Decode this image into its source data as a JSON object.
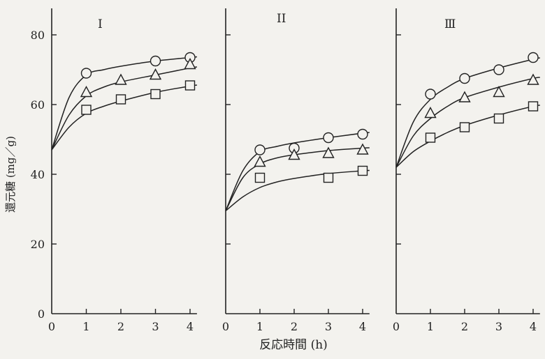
{
  "figure": {
    "ylabel": "還元糖 (mg／g)",
    "xlabel": "反応時間 (h)"
  },
  "chart_data": [
    {
      "type": "scatter",
      "title": "I",
      "xlim": [
        0,
        4.2
      ],
      "ylim": [
        0,
        84
      ],
      "xticks": [
        0,
        1,
        2,
        3,
        4
      ],
      "yticks": [
        0,
        20,
        40,
        60,
        80
      ],
      "markers": [
        "circle",
        "triangle",
        "square"
      ],
      "series": [
        {
          "marker": "circle",
          "x": [
            1,
            3,
            4
          ],
          "values": [
            69,
            72.5,
            73.5
          ]
        },
        {
          "marker": "triangle",
          "x": [
            1,
            2,
            3,
            4
          ],
          "values": [
            63.5,
            67,
            68.5,
            71.5
          ]
        },
        {
          "marker": "square",
          "x": [
            1,
            2,
            3,
            4
          ],
          "values": [
            58.5,
            61.5,
            63,
            65.5
          ]
        }
      ],
      "fit_curves": [
        {
          "marker": "circle",
          "x": [
            0,
            0.5,
            1,
            1.5,
            2,
            3,
            4,
            4.2
          ],
          "values": [
            47,
            62,
            68.5,
            70,
            71,
            72.5,
            73.5,
            73.7
          ]
        },
        {
          "marker": "triangle",
          "x": [
            0,
            0.5,
            1,
            1.5,
            2,
            3,
            4,
            4.2
          ],
          "values": [
            47,
            57,
            62.5,
            65,
            66.5,
            68.5,
            70.5,
            70.8
          ]
        },
        {
          "marker": "square",
          "x": [
            0,
            0.5,
            1,
            1.5,
            2,
            3,
            4,
            4.2
          ],
          "values": [
            47,
            53.5,
            57.5,
            59.5,
            61,
            63.5,
            65.3,
            65.6
          ]
        }
      ]
    },
    {
      "type": "scatter",
      "title": "II",
      "xlim": [
        0,
        4.2
      ],
      "ylim": [
        0,
        84
      ],
      "xticks": [
        0,
        1,
        2,
        3,
        4
      ],
      "yticks": [],
      "markers": [
        "circle",
        "triangle",
        "square"
      ],
      "series": [
        {
          "marker": "circle",
          "x": [
            1,
            2,
            3,
            4
          ],
          "values": [
            47,
            47.5,
            50.5,
            51.5
          ]
        },
        {
          "marker": "triangle",
          "x": [
            1,
            2,
            3,
            4
          ],
          "values": [
            43.5,
            45.5,
            46,
            47
          ]
        },
        {
          "marker": "square",
          "x": [
            1,
            3,
            4
          ],
          "values": [
            39,
            39,
            41
          ]
        }
      ],
      "fit_curves": [
        {
          "marker": "circle",
          "x": [
            0,
            0.5,
            1,
            1.5,
            2,
            3,
            4,
            4.2
          ],
          "values": [
            29.5,
            41,
            46.5,
            48,
            49,
            50.5,
            51.8,
            52
          ]
        },
        {
          "marker": "triangle",
          "x": [
            0,
            0.5,
            1,
            1.5,
            2,
            3,
            4,
            4.2
          ],
          "values": [
            29.5,
            39,
            43,
            44.7,
            45.6,
            46.8,
            47.5,
            47.6
          ]
        },
        {
          "marker": "square",
          "x": [
            0,
            0.5,
            1,
            1.5,
            2,
            3,
            4,
            4.2
          ],
          "values": [
            29.5,
            33.5,
            36.2,
            37.8,
            38.8,
            40.2,
            41,
            41.1
          ]
        }
      ]
    },
    {
      "type": "scatter",
      "title": "Ⅲ",
      "xlim": [
        0,
        4.2
      ],
      "ylim": [
        0,
        84
      ],
      "xticks": [
        0,
        1,
        2,
        3,
        4
      ],
      "yticks": [],
      "markers": [
        "circle",
        "triangle",
        "square"
      ],
      "series": [
        {
          "marker": "circle",
          "x": [
            1,
            2,
            3,
            4
          ],
          "values": [
            63,
            67.5,
            70,
            73.5
          ]
        },
        {
          "marker": "triangle",
          "x": [
            1,
            2,
            3,
            4
          ],
          "values": [
            57.5,
            62,
            63.5,
            67
          ]
        },
        {
          "marker": "square",
          "x": [
            1,
            2,
            3,
            4
          ],
          "values": [
            50.5,
            53.5,
            56,
            59.5
          ]
        }
      ],
      "fit_curves": [
        {
          "marker": "circle",
          "x": [
            0,
            0.5,
            1,
            1.5,
            2,
            3,
            4,
            4.2
          ],
          "values": [
            42,
            55,
            61.5,
            65,
            67.5,
            70.5,
            73,
            73.4
          ]
        },
        {
          "marker": "triangle",
          "x": [
            0,
            0.5,
            1,
            1.5,
            2,
            3,
            4,
            4.2
          ],
          "values": [
            42,
            51,
            56,
            59.5,
            62,
            65,
            67.5,
            67.8
          ]
        },
        {
          "marker": "square",
          "x": [
            0,
            0.5,
            1,
            1.5,
            2,
            3,
            4,
            4.2
          ],
          "values": [
            42,
            46.5,
            49.5,
            52,
            54,
            57,
            59.5,
            59.8
          ]
        }
      ]
    }
  ]
}
